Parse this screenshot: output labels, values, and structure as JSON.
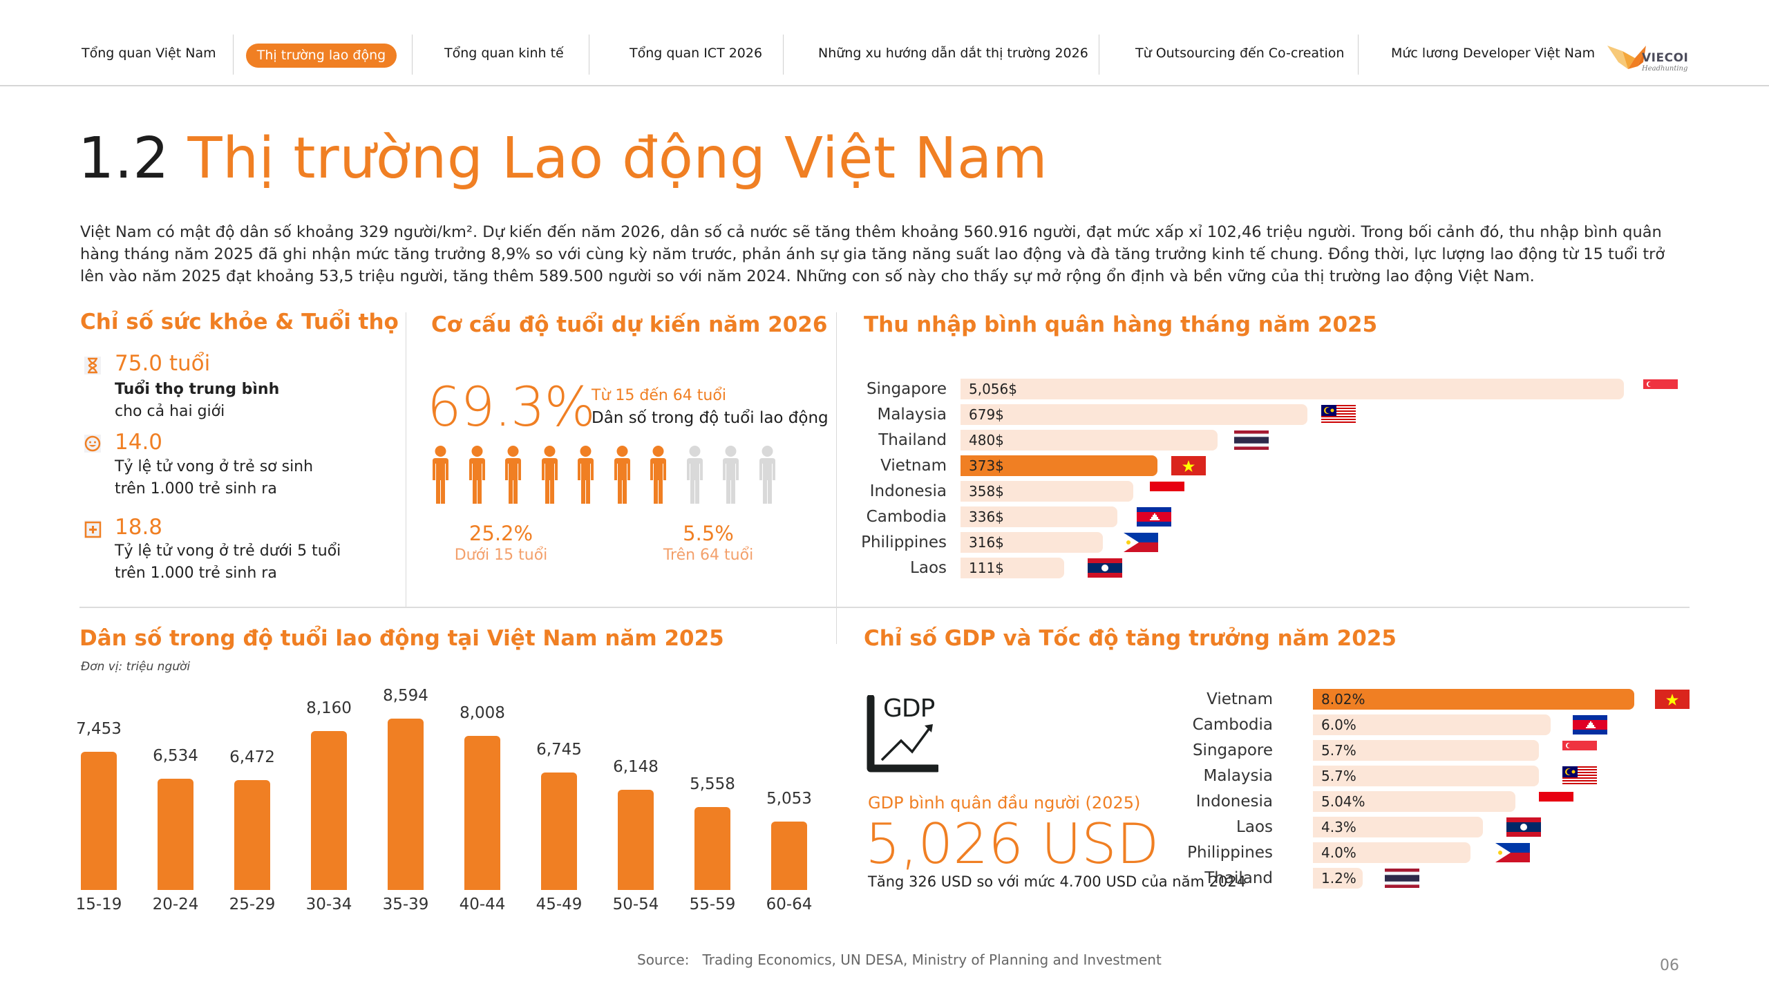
{
  "nav": {
    "items": [
      {
        "label": "Tổng quan Việt Nam",
        "active": false
      },
      {
        "label": "Thị trường lao động",
        "active": true
      },
      {
        "label": "Tổng quan kinh tế",
        "active": false
      },
      {
        "label": "Tổng quan ICT 2026",
        "active": false
      },
      {
        "label": "Những xu hướng dẫn dắt thị trường 2026",
        "active": false
      },
      {
        "label": "Từ Outsourcing đến Co-creation",
        "active": false
      },
      {
        "label": "Mức lương Developer Việt Nam",
        "active": false
      }
    ],
    "logo": {
      "brand": "VIECOI",
      "tagline": "Headhunting"
    }
  },
  "page": {
    "section_number": "1.2",
    "title": "Thị trường Lao động Việt Nam",
    "intro": "Việt Nam có mật độ dân số khoảng 329 người/km². Dự kiến đến năm 2026, dân số cả nước sẽ tăng thêm khoảng 560.916 người, đạt mức xấp xỉ 102,46 triệu người. Trong bối cảnh đó, thu nhập bình quân hàng tháng năm 2025 đã ghi nhận mức tăng trưởng 8,9% so với cùng kỳ năm trước, phản ánh sự gia tăng năng suất lao động và đà tăng trưởng kinh tế chung. Đồng thời, lực lượng lao động từ 15 tuổi trở lên vào năm 2025 đạt khoảng 53,5 triệu người, tăng thêm 589.500 người so với năm 2024. Những con số này cho thấy sự mở rộng ổn định và bền vững của thị trường lao động Việt Nam."
  },
  "health": {
    "title": "Chỉ số sức khỏe & Tuổi thọ",
    "items": [
      {
        "icon": "hourglass-icon",
        "value": "75.0 tuổi",
        "label_bold": "Tuổi thọ trung bình",
        "label": "cho cả hai giới"
      },
      {
        "icon": "baby-face-icon",
        "value": "14.0",
        "label_bold": "",
        "label": "Tỷ lệ tử vong ở trẻ sơ sinh",
        "label2": "trên 1.000 trẻ sinh ra"
      },
      {
        "icon": "medical-plus-icon",
        "value": "18.8",
        "label_bold": "",
        "label": "Tỷ lệ tử vong ở trẻ dưới 5 tuổi",
        "label2": "trên 1.000 trẻ sinh ra"
      }
    ]
  },
  "age_structure": {
    "title": "Cơ cấu độ tuổi dự kiến năm 2026",
    "main_pct": "69.3%",
    "main_range": "Từ 15 đến 64 tuổi",
    "main_label": "Dân số trong độ tuổi lao động",
    "people_total": 10,
    "people_highlighted": 7,
    "under15": {
      "value": "25.2%",
      "label": "Dưới 15 tuổi"
    },
    "over64": {
      "value": "5.5%",
      "label": "Trên 64 tuổi"
    }
  },
  "footer": {
    "source_label": "Source:",
    "source": "Trading Economics, UN DESA, Ministry of Planning and Investment",
    "page_number": "06"
  },
  "gdp": {
    "title": "Chỉ số GDP và Tốc độ tăng trưởng năm 2025",
    "icon_text": "GDP",
    "per_capita_label": "GDP bình quân đầu người (2025)",
    "per_capita_value": "5,026 USD",
    "note": "Tăng 326 USD so với mức 4.700 USD của năm 2024"
  },
  "colors": {
    "accent": "#F07F23",
    "bar_light": "#FCE6D8",
    "inactive_person": "#D9D9D9"
  },
  "chart_data": [
    {
      "id": "income",
      "type": "bar",
      "orientation": "horizontal",
      "title": "Thu nhập bình quân hàng tháng năm 2025",
      "categories": [
        "Singapore",
        "Malaysia",
        "Thailand",
        "Vietnam",
        "Indonesia",
        "Cambodia",
        "Philippines",
        "Laos"
      ],
      "values": [
        5056,
        679,
        480,
        373,
        358,
        336,
        316,
        111
      ],
      "value_labels": [
        "5,056$",
        "679$",
        "480$",
        "373$",
        "358$",
        "336$",
        "316$",
        "111$"
      ],
      "highlight": "Vietnam",
      "unit": "USD/month",
      "note": "bar lengths are not to linear scale in the original"
    },
    {
      "id": "labor_population",
      "type": "bar",
      "orientation": "vertical",
      "title": "Dân số trong độ tuổi lao động tại Việt Nam năm 2025",
      "subtitle": "Đơn vị: triệu người",
      "categories": [
        "15-19",
        "20-24",
        "25-29",
        "30-34",
        "35-39",
        "40-44",
        "45-49",
        "50-54",
        "55-59",
        "60-64"
      ],
      "values": [
        7.453,
        6.534,
        6.472,
        8.16,
        8.594,
        8.008,
        6.745,
        6.148,
        5.558,
        5.053
      ],
      "value_labels": [
        "7,453",
        "6,534",
        "6,472",
        "8,160",
        "8,594",
        "8,008",
        "6,745",
        "6,148",
        "5,558",
        "5,053"
      ],
      "grid": false
    },
    {
      "id": "gdp_growth",
      "type": "bar",
      "orientation": "horizontal",
      "title": "Chỉ số GDP và Tốc độ tăng trưởng năm 2025",
      "categories": [
        "Vietnam",
        "Cambodia",
        "Singapore",
        "Malaysia",
        "Indonesia",
        "Laos",
        "Philippines",
        "Thailand"
      ],
      "values": [
        8.02,
        6.0,
        5.7,
        5.7,
        5.04,
        4.3,
        4.0,
        1.2
      ],
      "value_labels": [
        "8.02%",
        "6.0%",
        "5.7%",
        "5.7%",
        "5.04%",
        "4.3%",
        "4.0%",
        "1.2%"
      ],
      "highlight": "Vietnam",
      "unit": "%"
    }
  ]
}
